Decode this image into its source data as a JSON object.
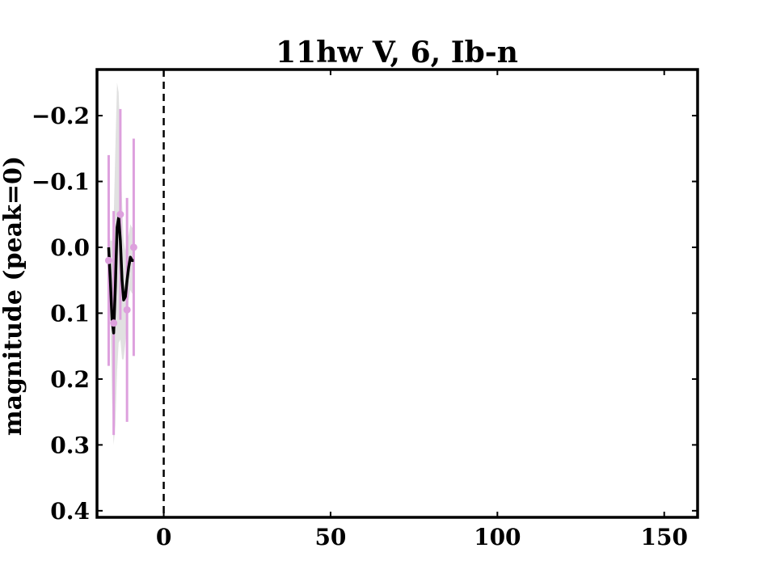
{
  "chart_data": {
    "type": "line",
    "title": "11hw V, 6, Ib-n",
    "xlabel": "",
    "ylabel": "magnitude (peak=0)",
    "xlim": [
      -20,
      160
    ],
    "ylim": [
      0.41,
      -0.27
    ],
    "y_inverted": true,
    "grid": false,
    "x_ticks": [
      "0",
      "50",
      "100",
      "150"
    ],
    "y_ticks": [
      "−0.2",
      "−0.1",
      "0.0",
      "0.1",
      "0.2",
      "0.3",
      "0.4"
    ],
    "peak_marker_x": 0,
    "points": {
      "color": "#dda0dd",
      "x": [
        -16.5,
        -15,
        -13,
        -11,
        -9
      ],
      "y": [
        0.02,
        0.115,
        -0.05,
        0.095,
        0.0
      ],
      "yerr": [
        0.16,
        0.17,
        0.16,
        0.17,
        0.165
      ]
    },
    "fit": {
      "color": "#000000",
      "band_color": "#c8c8c8",
      "x": [
        -16.5,
        -16,
        -15.5,
        -15,
        -14.5,
        -14,
        -13.5,
        -13,
        -12.5,
        -12,
        -11.5,
        -11,
        -10.5,
        -10,
        -9.5,
        -9
      ],
      "y": [
        0.0,
        0.05,
        0.11,
        0.13,
        0.06,
        -0.03,
        -0.045,
        -0.01,
        0.05,
        0.08,
        0.075,
        0.05,
        0.03,
        0.015,
        0.02,
        0.02
      ],
      "band": [
        0.03,
        0.06,
        0.12,
        0.17,
        0.21,
        0.22,
        0.19,
        0.15,
        0.12,
        0.09,
        0.07,
        0.06,
        0.05,
        0.05,
        0.05,
        0.05
      ]
    }
  }
}
